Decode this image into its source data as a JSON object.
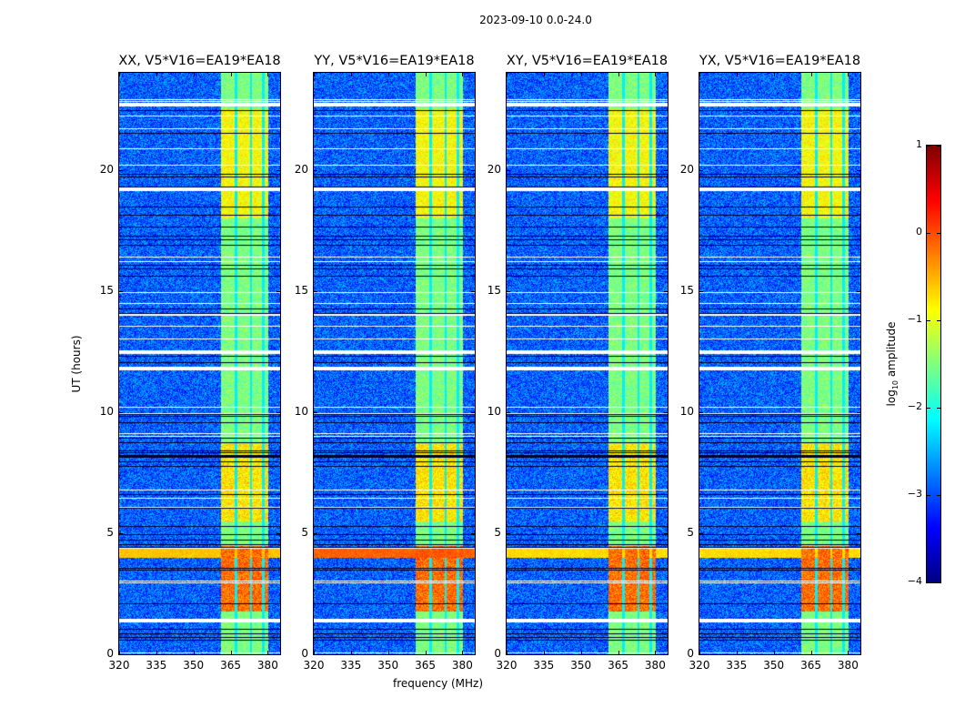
{
  "chart_data": {
    "type": "heatmap",
    "title": "2023-09-10 0.0-24.0",
    "xlabel": "frequency (MHz)",
    "ylabel": "UT (hours)",
    "xlim": [
      320,
      385
    ],
    "ylim": [
      0,
      24
    ],
    "xticks": [
      320,
      335,
      350,
      365,
      380
    ],
    "yticks": [
      0,
      5,
      10,
      15,
      20
    ],
    "panels": [
      {
        "title": "XX, V5*V16=EA19*EA18",
        "rfi_stripe_strength": 0.6
      },
      {
        "title": "YY, V5*V16=EA19*EA18",
        "rfi_stripe_strength": 1.0
      },
      {
        "title": "XY, V5*V16=EA19*EA18",
        "rfi_stripe_strength": 0.5
      },
      {
        "title": "YX, V5*V16=EA19*EA18",
        "rfi_stripe_strength": 0.5
      }
    ],
    "signal_band_mhz": [
      361,
      380
    ],
    "band_gaps_mhz": [
      367,
      373,
      378
    ],
    "strong_signal_hours": [
      1.8,
      4.5
    ],
    "flagged_hours_white": [
      1.4,
      11.8,
      12.5,
      19.2,
      22.7
    ],
    "colorbar": {
      "label": "log",
      "label_sub": "10",
      "label_rest": " amplitude",
      "colormap": "jet",
      "range": [
        -4,
        1
      ],
      "ticks": [
        -4,
        -3,
        -2,
        -1,
        0,
        1
      ],
      "tick_labels": [
        "−4",
        "−3",
        "−2",
        "−1",
        "0",
        "1"
      ]
    }
  }
}
